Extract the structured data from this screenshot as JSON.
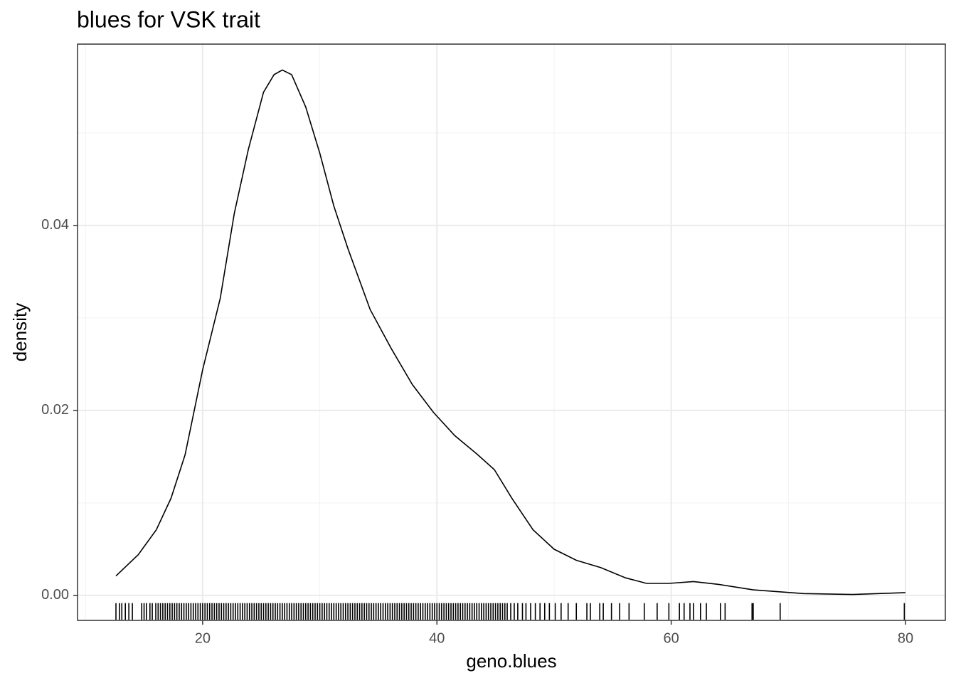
{
  "chart_data": {
    "type": "density",
    "title": "blues for VSK trait",
    "xlabel": "geno.blues",
    "ylabel": "density",
    "x": [
      12.6,
      14.5,
      16.05,
      17.3,
      18.5,
      20,
      21.5,
      22.7,
      23.9,
      25.2,
      26.1,
      26.8,
      27.6,
      28.8,
      30.0,
      31.2,
      32.4,
      34.3,
      36.1,
      37.9,
      39.7,
      41.5,
      43.4,
      44.9,
      46.4,
      48.2,
      50.0,
      51.9,
      54.0,
      56.1,
      57.9,
      59.8,
      61.9,
      64.0,
      67.0,
      71.3,
      75.5,
      80
    ],
    "values": [
      0.0021,
      0.0044,
      0.0071,
      0.0105,
      0.0152,
      0.0244,
      0.0321,
      0.0413,
      0.0482,
      0.0544,
      0.0563,
      0.0568,
      0.0563,
      0.0528,
      0.0478,
      0.0421,
      0.0375,
      0.0309,
      0.0267,
      0.0228,
      0.0198,
      0.0173,
      0.0153,
      0.0136,
      0.0105,
      0.0071,
      0.005,
      0.0038,
      0.003,
      0.0019,
      0.0013,
      0.0013,
      0.0015,
      0.0012,
      0.0006,
      0.0002,
      0.0001,
      0.0003
    ],
    "color": "#000000",
    "rug": [
      12.6,
      12.9,
      13.1,
      13.4,
      13.7,
      14.0,
      14.8,
      15.0,
      15.2,
      15.5,
      15.7,
      16.0,
      16.2,
      16.4,
      16.6,
      16.8,
      17.0,
      17.2,
      17.4,
      17.6,
      17.8,
      18.0,
      18.2,
      18.4,
      18.6,
      18.8,
      19.0,
      19.2,
      19.4,
      19.6,
      19.8,
      20.0,
      20.2,
      20.4,
      20.6,
      20.8,
      21.0,
      21.2,
      21.4,
      21.6,
      21.8,
      22.0,
      22.2,
      22.4,
      22.6,
      22.8,
      23.0,
      23.2,
      23.4,
      23.6,
      23.8,
      24.0,
      24.2,
      24.4,
      24.6,
      24.8,
      25.0,
      25.2,
      25.4,
      25.6,
      25.8,
      26.0,
      26.2,
      26.4,
      26.6,
      26.8,
      27.0,
      27.2,
      27.4,
      27.6,
      27.8,
      28.0,
      28.2,
      28.4,
      28.6,
      28.8,
      29.0,
      29.2,
      29.4,
      29.6,
      29.8,
      30.0,
      30.2,
      30.4,
      30.6,
      30.8,
      31.0,
      31.2,
      31.4,
      31.6,
      31.8,
      32.0,
      32.2,
      32.4,
      32.6,
      32.8,
      33.0,
      33.2,
      33.4,
      33.6,
      33.8,
      34.0,
      34.2,
      34.4,
      34.6,
      34.8,
      35.0,
      35.2,
      35.4,
      35.6,
      35.8,
      36.0,
      36.2,
      36.4,
      36.6,
      36.8,
      37.0,
      37.2,
      37.4,
      37.6,
      37.8,
      38.0,
      38.2,
      38.4,
      38.6,
      38.8,
      39.0,
      39.2,
      39.4,
      39.6,
      39.8,
      40.0,
      40.2,
      40.4,
      40.6,
      40.8,
      41.0,
      41.2,
      41.4,
      41.6,
      41.8,
      42.0,
      42.2,
      42.4,
      42.6,
      42.8,
      43.0,
      43.2,
      43.4,
      43.6,
      43.8,
      44.0,
      44.2,
      44.4,
      44.6,
      44.8,
      45.0,
      45.2,
      45.4,
      45.6,
      45.8,
      46.0,
      46.3,
      46.6,
      46.9,
      47.3,
      47.6,
      48.0,
      48.4,
      48.8,
      49.2,
      49.6,
      50.1,
      50.6,
      51.2,
      51.9,
      52.8,
      53.1,
      53.9,
      54.2,
      54.9,
      55.6,
      56.4,
      57.7,
      58.8,
      59.8,
      60.7,
      61.1,
      61.6,
      61.9,
      62.5,
      63.0,
      64.2,
      64.6,
      66.9,
      67.0,
      69.3,
      79.9
    ],
    "xlim": [
      9.32,
      83.4
    ],
    "ylim": [
      -0.0027,
      0.0596
    ],
    "xticks": [
      20,
      40,
      60,
      80
    ],
    "yticks": [
      {
        "value": 0,
        "label": "0.00"
      },
      {
        "value": 0.02,
        "label": "0.02"
      },
      {
        "value": 0.04,
        "label": "0.04"
      }
    ],
    "xminorticks": [
      10,
      30,
      50,
      70
    ],
    "yminorticks": [
      0.01,
      0.03,
      0.05
    ],
    "grid": true
  }
}
